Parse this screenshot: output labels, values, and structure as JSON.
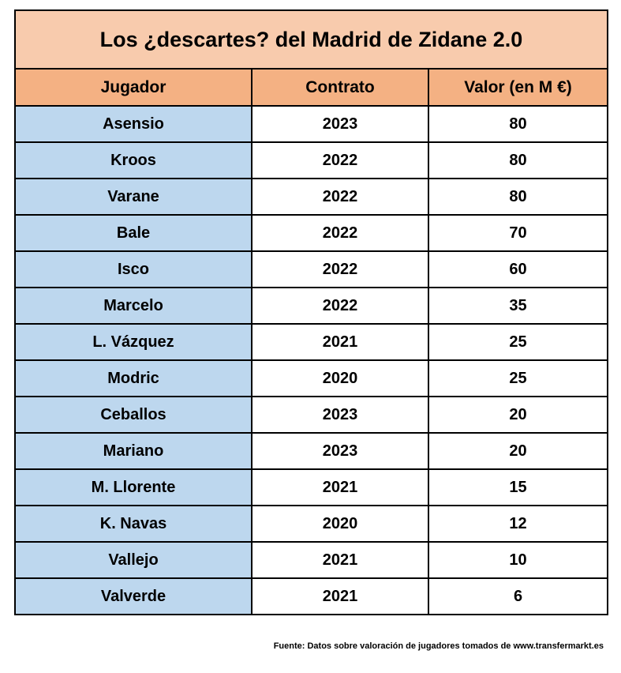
{
  "title": "Los ¿descartes? del Madrid de Zidane 2.0",
  "headers": [
    "Jugador",
    "Contrato",
    "Valor (en M €)"
  ],
  "rows": [
    {
      "jugador": "Asensio",
      "contrato": "2023",
      "valor": "80"
    },
    {
      "jugador": "Kroos",
      "contrato": "2022",
      "valor": "80"
    },
    {
      "jugador": "Varane",
      "contrato": "2022",
      "valor": "80"
    },
    {
      "jugador": "Bale",
      "contrato": "2022",
      "valor": "70"
    },
    {
      "jugador": "Isco",
      "contrato": "2022",
      "valor": "60"
    },
    {
      "jugador": "Marcelo",
      "contrato": "2022",
      "valor": "35"
    },
    {
      "jugador": "L. Vázquez",
      "contrato": "2021",
      "valor": "25"
    },
    {
      "jugador": "Modric",
      "contrato": "2020",
      "valor": "25"
    },
    {
      "jugador": "Ceballos",
      "contrato": "2023",
      "valor": "20"
    },
    {
      "jugador": "Mariano",
      "contrato": "2023",
      "valor": "20"
    },
    {
      "jugador": "M. Llorente",
      "contrato": "2021",
      "valor": "15"
    },
    {
      "jugador": "K. Navas",
      "contrato": "2020",
      "valor": "12"
    },
    {
      "jugador": "Vallejo",
      "contrato": "2021",
      "valor": "10"
    },
    {
      "jugador": "Valverde",
      "contrato": "2021",
      "valor": "6"
    }
  ],
  "source": "Fuente: Datos sobre valoración de jugadores tomados de  www.transfermarkt.es",
  "colors": {
    "title_bg": "#f8cbad",
    "header_bg": "#f4b183",
    "name_bg": "#bdd7ee",
    "value_bg": "#ffffff"
  }
}
